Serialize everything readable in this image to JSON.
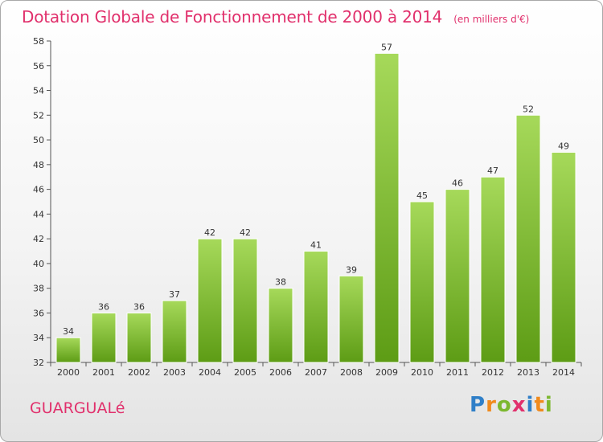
{
  "chart_data": {
    "type": "bar",
    "title": "Dotation Globale de Fonctionnement de 2000 à 2014",
    "subtitle": "(en milliers d'€)",
    "xlabel": "",
    "ylabel": "",
    "categories": [
      "2000",
      "2001",
      "2002",
      "2003",
      "2004",
      "2005",
      "2006",
      "2007",
      "2008",
      "2009",
      "2010",
      "2011",
      "2012",
      "2013",
      "2014"
    ],
    "values": [
      34,
      36,
      36,
      37,
      42,
      42,
      38,
      41,
      39,
      57,
      45,
      46,
      47,
      52,
      49
    ],
    "ylim": [
      32,
      58
    ],
    "yticks": [
      32,
      34,
      36,
      38,
      40,
      42,
      44,
      46,
      48,
      50,
      52,
      54,
      56,
      58
    ],
    "grid": false,
    "legend": "none",
    "colors": {
      "bar_light": "#a6d95a",
      "bar_dark": "#5d9c15",
      "title": "#e1306c"
    }
  },
  "commune": "GUARGUALé",
  "logo": {
    "text": "Proxiti",
    "letters": [
      {
        "ch": "P",
        "color": "#2f7fc8"
      },
      {
        "ch": "r",
        "color": "#f08a1c"
      },
      {
        "ch": "o",
        "color": "#7cb82f"
      },
      {
        "ch": "x",
        "color": "#e1306c"
      },
      {
        "ch": "i",
        "color": "#2f7fc8"
      },
      {
        "ch": "t",
        "color": "#f08a1c"
      },
      {
        "ch": "i",
        "color": "#7cb82f"
      }
    ]
  }
}
